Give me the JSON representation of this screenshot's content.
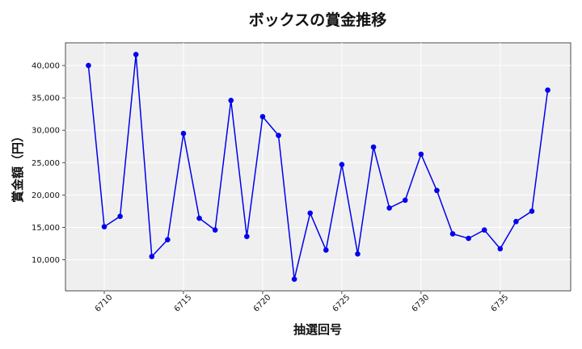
{
  "chart_data": {
    "type": "line",
    "title": "ボックスの賞金推移",
    "xlabel": "抽選回号",
    "ylabel": "賞金額（円）",
    "x": [
      6709,
      6710,
      6711,
      6712,
      6713,
      6714,
      6715,
      6716,
      6717,
      6718,
      6719,
      6720,
      6721,
      6722,
      6723,
      6724,
      6725,
      6726,
      6727,
      6728,
      6729,
      6730,
      6731,
      6732,
      6733,
      6734,
      6735,
      6736,
      6737,
      6738
    ],
    "series": [
      {
        "values": [
          40000,
          15100,
          16700,
          41700,
          10500,
          13100,
          29500,
          16400,
          14600,
          34600,
          13600,
          32100,
          29200,
          7000,
          17200,
          11500,
          24700,
          10900,
          27400,
          18000,
          19200,
          26300,
          20700,
          14000,
          13300,
          14600,
          11700,
          15900,
          17500,
          36200
        ],
        "color": "#0000ee"
      }
    ],
    "xticks": [
      "6710",
      "6715",
      "6720",
      "6725",
      "6730",
      "6735"
    ],
    "yticks": [
      "10,000",
      "15,000",
      "20,000",
      "25,000",
      "30,000",
      "35,000",
      "40,000"
    ],
    "xlim": [
      6707.55,
      6739.45
    ],
    "ylim": [
      5200,
      43500
    ],
    "grid": true,
    "background": "#efefef"
  }
}
